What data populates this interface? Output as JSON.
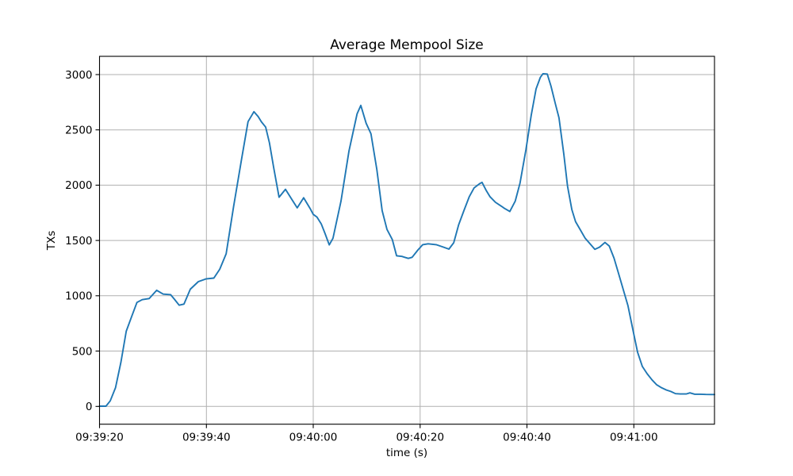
{
  "chart_data": {
    "type": "line",
    "title": "Average Mempool Size",
    "xlabel": "time (s)",
    "ylabel": "TXs",
    "series_name": "average-mempool-size",
    "line_color": "#1f77b4",
    "line_width": 1.9,
    "grid": true,
    "grid_color": "#b0b0b0",
    "axis_color": "#000000",
    "background_color": "#ffffff",
    "x_start_time": "09:39:20",
    "x_tick_labels": [
      "09:39:20",
      "09:39:40",
      "09:40:00",
      "09:40:20",
      "09:40:40",
      "09:41:00"
    ],
    "x_tick_seconds": [
      0,
      20,
      40,
      60,
      80,
      100
    ],
    "y_tick_labels": [
      "0",
      "500",
      "1000",
      "1500",
      "2000",
      "2500",
      "3000"
    ],
    "y_ticks": [
      0,
      500,
      1000,
      1500,
      2000,
      2500,
      3000
    ],
    "xlim_seconds": [
      0,
      115.1
    ],
    "ylim": [
      -161,
      3165
    ],
    "x": [
      0,
      1.2,
      2,
      3,
      4,
      5,
      6,
      7,
      8,
      9.3,
      10.7,
      11.9,
      13.3,
      14,
      14.9,
      15.8,
      17,
      18.5,
      19.9,
      21.4,
      22.5,
      23.7,
      25.1,
      26.6,
      27.8,
      28.9,
      29.7,
      30.3,
      31.1,
      31.8,
      32.6,
      33.6,
      34.8,
      36,
      37,
      38.2,
      39.4,
      40,
      40.7,
      41.5,
      42.2,
      43,
      43.7,
      45.2,
      46.7,
      48.2,
      48.9,
      49.9,
      50.8,
      51.9,
      52.9,
      53.8,
      54.8,
      55.6,
      56.6,
      57.8,
      58.5,
      59.6,
      60.5,
      61.5,
      63,
      64.2,
      65.4,
      66.3,
      67.2,
      68.2,
      69.2,
      70.1,
      71.2,
      71.6,
      72.4,
      73.1,
      74.1,
      75.2,
      75.8,
      76.8,
      77.8,
      78.7,
      79.8,
      80.8,
      81.7,
      82.5,
      83,
      83.8,
      84.5,
      85.3,
      86,
      86.9,
      87.6,
      88.4,
      89.1,
      90,
      90.9,
      91.8,
      92.7,
      93.6,
      94.6,
      95.4,
      96.3,
      97.1,
      98,
      98.9,
      99.8,
      100.7,
      101.6,
      102.5,
      103.4,
      104.3,
      105.2,
      106.1,
      106.9,
      107.8,
      108.7,
      109.8,
      110.5,
      111.4,
      112.4,
      113.5,
      114.5,
      115.1
    ],
    "y": [
      2,
      2,
      50,
      170,
      400,
      680,
      810,
      940,
      965,
      975,
      1050,
      1015,
      1010,
      970,
      915,
      925,
      1060,
      1128,
      1152,
      1160,
      1240,
      1380,
      1808,
      2238,
      2575,
      2664,
      2620,
      2573,
      2525,
      2382,
      2160,
      1891,
      1963,
      1870,
      1795,
      1886,
      1790,
      1736,
      1712,
      1650,
      1565,
      1460,
      1520,
      1856,
      2310,
      2645,
      2721,
      2560,
      2465,
      2142,
      1770,
      1600,
      1509,
      1362,
      1356,
      1338,
      1348,
      1415,
      1462,
      1470,
      1462,
      1443,
      1422,
      1480,
      1640,
      1770,
      1895,
      1975,
      2015,
      2025,
      1950,
      1895,
      1845,
      1810,
      1790,
      1762,
      1855,
      2020,
      2320,
      2633,
      2870,
      2975,
      3008,
      3005,
      2896,
      2740,
      2609,
      2280,
      1990,
      1780,
      1670,
      1595,
      1520,
      1470,
      1420,
      1440,
      1482,
      1450,
      1340,
      1210,
      1060,
      910,
      700,
      490,
      361,
      295,
      240,
      195,
      168,
      148,
      135,
      115,
      112,
      112,
      122,
      110,
      110,
      108,
      107,
      107
    ]
  }
}
